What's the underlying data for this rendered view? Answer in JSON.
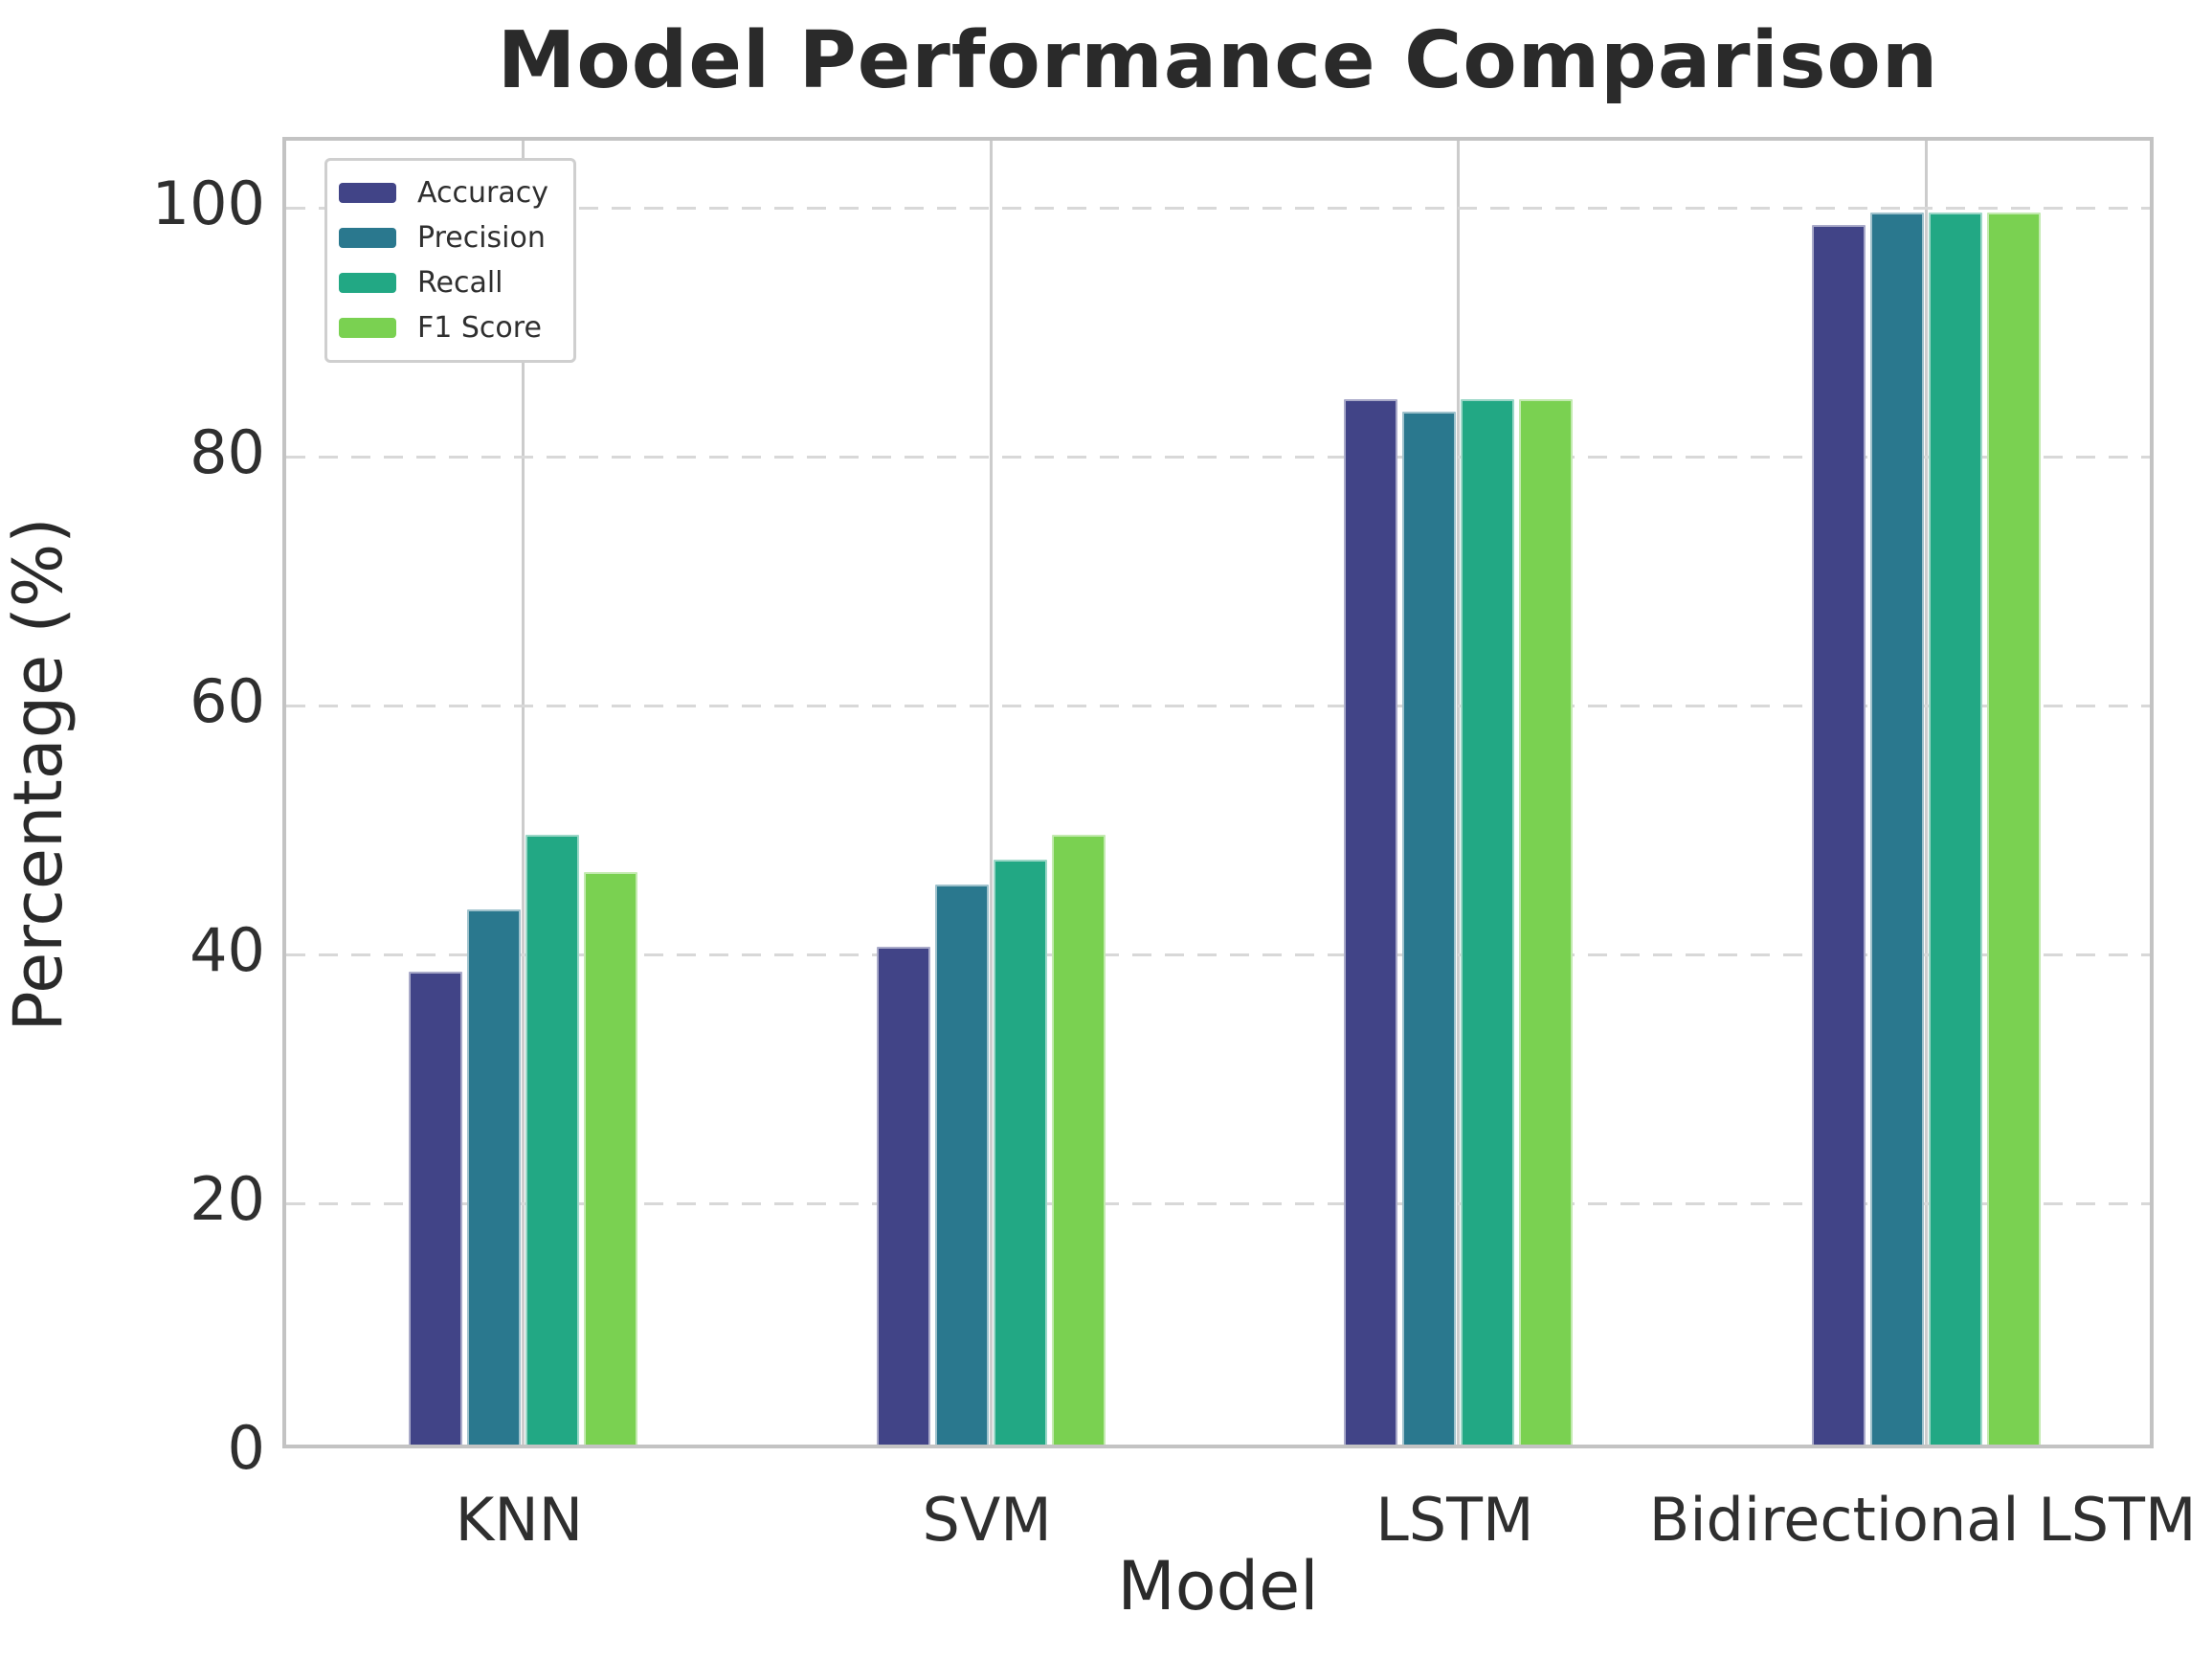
{
  "chart_data": {
    "type": "bar",
    "title": "Model Performance Comparison",
    "xlabel": "Model",
    "ylabel": "Percentage (%)",
    "categories": [
      "KNN",
      "SVM",
      "LSTM",
      "Bidirectional LSTM"
    ],
    "series": [
      {
        "name": "Accuracy",
        "color": "#414487",
        "values": [
          38,
          40,
          84,
          98
        ]
      },
      {
        "name": "Precision",
        "color": "#2a788e",
        "values": [
          43,
          45,
          83,
          99
        ]
      },
      {
        "name": "Recall",
        "color": "#22a884",
        "values": [
          49,
          47,
          84,
          99
        ]
      },
      {
        "name": "F1 Score",
        "color": "#7ad151",
        "values": [
          46,
          49,
          84,
          99
        ]
      }
    ],
    "yticks": [
      0,
      20,
      40,
      60,
      80,
      100
    ],
    "ylim": [
      0,
      105.4
    ],
    "grid": true,
    "grid_style": {
      "horizontal": "dashed",
      "vertical": "solid"
    },
    "legend_position": "upper left",
    "colors": {
      "accent_accuracy": "#414487",
      "accent_precision": "#2a788e",
      "accent_recall": "#22a884",
      "accent_f1": "#7ad151",
      "spine": "#c3c3c3",
      "grid": "#d8d8d8",
      "text": "#2a2a2a"
    }
  }
}
